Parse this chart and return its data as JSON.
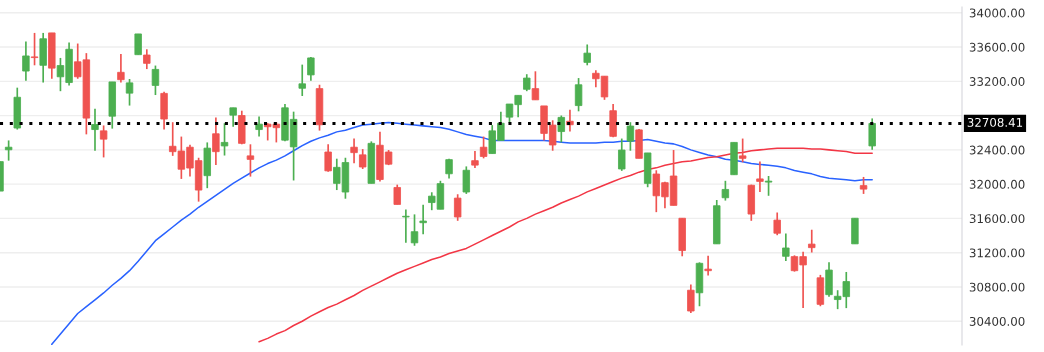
{
  "chart_data": {
    "type": "candlestick",
    "categories": [
      null,
      null,
      null,
      null,
      null,
      null,
      null,
      null,
      null,
      null,
      null,
      null,
      null,
      null,
      null,
      null,
      null,
      null,
      null,
      null,
      null,
      null,
      null,
      null,
      null,
      null,
      null,
      null,
      null,
      null,
      null,
      null,
      null,
      null,
      null,
      null,
      null,
      null,
      null,
      null,
      null,
      null,
      null,
      null,
      null,
      null,
      null,
      null,
      null,
      null,
      null,
      null,
      null,
      null,
      null,
      null,
      null,
      null,
      null,
      null,
      null,
      null,
      null,
      null,
      null,
      null,
      null,
      null,
      null,
      null,
      null,
      null,
      null,
      null,
      null,
      null,
      null,
      null,
      null,
      null,
      null,
      null,
      null,
      null,
      null,
      null,
      null,
      null,
      null,
      null,
      null,
      null,
      null,
      null,
      null,
      null,
      null,
      null,
      null,
      null,
      null,
      null
    ],
    "ohlc": [
      [
        31919,
        32263,
        31919,
        32263
      ],
      [
        32401,
        32510,
        32274,
        32431
      ],
      [
        32655,
        33126,
        32637,
        33014
      ],
      [
        33320,
        33664,
        33208,
        33496
      ],
      [
        33485,
        33765,
        33387,
        33477
      ],
      [
        33387,
        33765,
        33186,
        33697
      ],
      [
        33765,
        33765,
        33230,
        33354
      ],
      [
        33253,
        33473,
        33085,
        33384
      ],
      [
        33186,
        33653,
        33152,
        33574
      ],
      [
        33428,
        33641,
        33230,
        33253
      ],
      [
        33451,
        33529,
        32581,
        32771
      ],
      [
        32637,
        32879,
        32390,
        32696
      ],
      [
        32622,
        32685,
        32312,
        32525
      ],
      [
        32793,
        33193,
        32648,
        33193
      ],
      [
        33305,
        33518,
        33186,
        33219
      ],
      [
        33062,
        33227,
        32917,
        33182
      ],
      [
        33511,
        33753,
        33511,
        33753
      ],
      [
        33507,
        33574,
        33343,
        33410
      ],
      [
        33152,
        33384,
        33040,
        33339
      ],
      [
        33059,
        33077,
        32637,
        32760
      ],
      [
        32442,
        32723,
        32330,
        32379
      ],
      [
        32386,
        32555,
        32061,
        32174
      ],
      [
        32431,
        32461,
        32088,
        32188
      ],
      [
        32274,
        32308,
        31796,
        31931
      ],
      [
        32099,
        32487,
        31953,
        32420
      ],
      [
        32588,
        32779,
        32222,
        32379
      ],
      [
        32446,
        32711,
        32334,
        32487
      ],
      [
        32805,
        32891,
        32670,
        32891
      ],
      [
        32801,
        32857,
        32465,
        32476
      ],
      [
        32330,
        32465,
        32088,
        32289
      ],
      [
        32637,
        32790,
        32555,
        32700
      ],
      [
        32700,
        32711,
        32510,
        32670
      ],
      [
        32700,
        32723,
        32487,
        32659
      ],
      [
        32513,
        32935,
        32502,
        32891
      ],
      [
        32435,
        32846,
        32043,
        32756
      ],
      [
        33119,
        33395,
        33029,
        33171
      ],
      [
        33275,
        33485,
        33208,
        33473
      ],
      [
        33115,
        33160,
        32625,
        32693
      ],
      [
        32375,
        32465,
        32144,
        32155
      ],
      [
        32009,
        32297,
        31931,
        32196
      ],
      [
        31908,
        32308,
        31830,
        32252
      ],
      [
        32431,
        32532,
        32245,
        32368
      ],
      [
        32342,
        32409,
        32177,
        32200
      ],
      [
        32009,
        32499,
        32009,
        32476
      ],
      [
        32454,
        32611,
        32032,
        32054
      ],
      [
        32375,
        32398,
        32222,
        32233
      ],
      [
        31961,
        31994,
        31763,
        31763
      ],
      [
        31617,
        31703,
        31315,
        31625
      ],
      [
        31315,
        31647,
        31281,
        31445
      ],
      [
        31550,
        31759,
        31415,
        31569
      ],
      [
        31785,
        31905,
        31696,
        31860
      ],
      [
        31707,
        32039,
        31707,
        32006
      ],
      [
        32121,
        32297,
        32065,
        32286
      ],
      [
        31837,
        31882,
        31572,
        31617
      ],
      [
        31908,
        32207,
        31886,
        32162
      ],
      [
        32274,
        32386,
        32188,
        32222
      ],
      [
        32431,
        32555,
        32301,
        32323
      ],
      [
        32357,
        32689,
        32357,
        32622
      ],
      [
        32510,
        32846,
        32510,
        32711
      ],
      [
        32782,
        32935,
        32715,
        32935
      ],
      [
        32928,
        33036,
        32782,
        33036
      ],
      [
        33107,
        33283,
        33085,
        33238
      ],
      [
        33115,
        33317,
        32984,
        32984
      ],
      [
        32913,
        32913,
        32510,
        32592
      ],
      [
        32689,
        32745,
        32390,
        32457
      ],
      [
        32614,
        32801,
        32487,
        32779
      ],
      [
        32734,
        32868,
        32614,
        32693
      ],
      [
        32917,
        33238,
        32850,
        33160
      ],
      [
        33421,
        33630,
        33387,
        33529
      ],
      [
        33294,
        33328,
        33130,
        33230
      ],
      [
        33260,
        33260,
        32984,
        33018
      ],
      [
        32857,
        32935,
        32547,
        32558
      ],
      [
        32177,
        32532,
        32155,
        32398
      ],
      [
        32502,
        32723,
        32390,
        32678
      ],
      [
        32633,
        32644,
        32301,
        32301
      ],
      [
        32009,
        32364,
        31964,
        32364
      ],
      [
        32118,
        32162,
        31673,
        31864
      ],
      [
        32017,
        32028,
        31718,
        31852
      ],
      [
        32095,
        32398,
        31752,
        31752
      ],
      [
        31602,
        31602,
        31158,
        31225
      ],
      [
        30762,
        30829,
        30497,
        30519
      ],
      [
        30732,
        31087,
        30575,
        31076
      ],
      [
        31008,
        31165,
        30934,
        30990
      ],
      [
        31303,
        31815,
        31303,
        31748
      ],
      [
        31841,
        32039,
        31808,
        31938
      ],
      [
        32110,
        32487,
        32110,
        32487
      ],
      [
        32330,
        32532,
        32256,
        32301
      ],
      [
        31987,
        31994,
        31572,
        31651
      ],
      [
        32061,
        32263,
        31908,
        32032
      ],
      [
        32024,
        32095,
        31864,
        32035
      ],
      [
        31580,
        31669,
        31404,
        31427
      ],
      [
        31158,
        31423,
        31102,
        31255
      ],
      [
        31154,
        31169,
        30979,
        30990
      ],
      [
        31154,
        31210,
        30553,
        31057
      ],
      [
        31300,
        31468,
        31202,
        31259
      ],
      [
        30907,
        30941,
        30575,
        30597
      ],
      [
        30710,
        31087,
        30687,
        30997
      ],
      [
        30653,
        30762,
        30541,
        30691
      ],
      [
        30687,
        30975,
        30553,
        30863
      ],
      [
        31303,
        31602,
        31303,
        31602
      ],
      [
        31983,
        32084,
        31886,
        31942
      ],
      [
        32446,
        32767,
        32401,
        32708.41
      ]
    ],
    "colors": [
      "#4caf50",
      "#4caf50",
      "#4caf50",
      "#4caf50",
      "#ef5350",
      "#4caf50",
      "#ef5350",
      "#4caf50",
      "#4caf50",
      "#ef5350",
      "#ef5350",
      "#4caf50",
      "#ef5350",
      "#4caf50",
      "#ef5350",
      "#4caf50",
      "#4caf50",
      "#ef5350",
      "#4caf50",
      "#ef5350",
      "#ef5350",
      "#ef5350",
      "#ef5350",
      "#ef5350",
      "#4caf50",
      "#ef5350",
      "#4caf50",
      "#4caf50",
      "#ef5350",
      "#ef5350",
      "#4caf50",
      "#ef5350",
      "#ef5350",
      "#4caf50",
      "#4caf50",
      "#4caf50",
      "#4caf50",
      "#ef5350",
      "#ef5350",
      "#4caf50",
      "#4caf50",
      "#ef5350",
      "#ef5350",
      "#4caf50",
      "#ef5350",
      "#ef5350",
      "#ef5350",
      "#4caf50",
      "#4caf50",
      "#4caf50",
      "#4caf50",
      "#4caf50",
      "#4caf50",
      "#ef5350",
      "#4caf50",
      "#ef5350",
      "#ef5350",
      "#4caf50",
      "#4caf50",
      "#4caf50",
      "#4caf50",
      "#4caf50",
      "#ef5350",
      "#ef5350",
      "#ef5350",
      "#4caf50",
      "#ef5350",
      "#4caf50",
      "#4caf50",
      "#ef5350",
      "#ef5350",
      "#ef5350",
      "#4caf50",
      "#4caf50",
      "#ef5350",
      "#4caf50",
      "#ef5350",
      "#ef5350",
      "#ef5350",
      "#ef5350",
      "#ef5350",
      "#4caf50",
      "#ef5350",
      "#4caf50",
      "#4caf50",
      "#4caf50",
      "#ef5350",
      "#ef5350",
      "#ef5350",
      "#4caf50",
      "#ef5350",
      "#4caf50",
      "#ef5350",
      "#ef5350",
      "#ef5350",
      "#ef5350",
      "#4caf50",
      "#4caf50",
      "#4caf50",
      "#4caf50",
      "#ef5350",
      "#4caf50"
    ],
    "series": [
      {
        "type": "line",
        "color": "#2962ff",
        "values": [
          null,
          null,
          null,
          null,
          null,
          null,
          30130,
          30250,
          30370,
          30490,
          30570,
          30650,
          30730,
          30820,
          30900,
          30990,
          31100,
          31220,
          31340,
          31420,
          31500,
          31580,
          31650,
          31730,
          31800,
          31870,
          31940,
          32010,
          32070,
          32130,
          32190,
          32240,
          32280,
          32330,
          32390,
          32450,
          32500,
          32540,
          32570,
          32610,
          32630,
          32660,
          32690,
          32700,
          32710,
          32720,
          32710,
          32700,
          32690,
          32680,
          32670,
          32660,
          32640,
          32610,
          32580,
          32560,
          32540,
          32510,
          32510,
          32510,
          32510,
          32510,
          32510,
          32510,
          32500,
          32490,
          32480,
          32480,
          32480,
          32480,
          32490,
          32490,
          32500,
          32500,
          32510,
          32520,
          32500,
          32480,
          32470,
          32440,
          32400,
          32370,
          32340,
          32320,
          32290,
          32280,
          32260,
          32240,
          32230,
          32220,
          32210,
          32190,
          32160,
          32140,
          32120,
          32090,
          32070,
          32060,
          32050,
          32040,
          32050,
          32050
        ]
      },
      {
        "type": "line",
        "color": "#f23645",
        "values": [
          null,
          null,
          null,
          null,
          null,
          null,
          null,
          null,
          null,
          null,
          null,
          null,
          null,
          null,
          null,
          null,
          null,
          null,
          null,
          null,
          null,
          null,
          null,
          null,
          null,
          null,
          null,
          null,
          null,
          null,
          30160,
          30200,
          30250,
          30290,
          30350,
          30400,
          30460,
          30510,
          30560,
          30600,
          30650,
          30700,
          30760,
          30810,
          30860,
          30910,
          30960,
          31000,
          31040,
          31080,
          31120,
          31150,
          31190,
          31220,
          31250,
          31300,
          31350,
          31400,
          31450,
          31500,
          31560,
          31600,
          31650,
          31690,
          31730,
          31780,
          31820,
          31860,
          31910,
          31950,
          31990,
          32030,
          32070,
          32100,
          32140,
          32170,
          32190,
          32220,
          32240,
          32260,
          32270,
          32290,
          32310,
          32320,
          32340,
          32360,
          32370,
          32390,
          32400,
          32410,
          32420,
          32420,
          32420,
          32420,
          32410,
          32410,
          32400,
          32390,
          32380,
          32360,
          32360,
          32360
        ]
      }
    ],
    "ylim": [
      30123,
      34067
    ],
    "yticks": [
      {
        "value": 30400,
        "label": "30400.00"
      },
      {
        "value": 30800,
        "label": "30800.00"
      },
      {
        "value": 31200,
        "label": "31200.00"
      },
      {
        "value": 31600,
        "label": "31600.00"
      },
      {
        "value": 32000,
        "label": "32000.00"
      },
      {
        "value": 32400,
        "label": "32400.00"
      },
      {
        "value": 32800,
        "label": null
      },
      {
        "value": 33200,
        "label": "33200.00"
      },
      {
        "value": 33600,
        "label": "33600.00"
      },
      {
        "value": 34000,
        "label": "34000.00"
      }
    ],
    "ref_lines": [
      {
        "axis": "y",
        "value": 32708.41,
        "label": "32708.41",
        "color": "#000000",
        "line_style": "dotted"
      }
    ],
    "grid": "y"
  }
}
